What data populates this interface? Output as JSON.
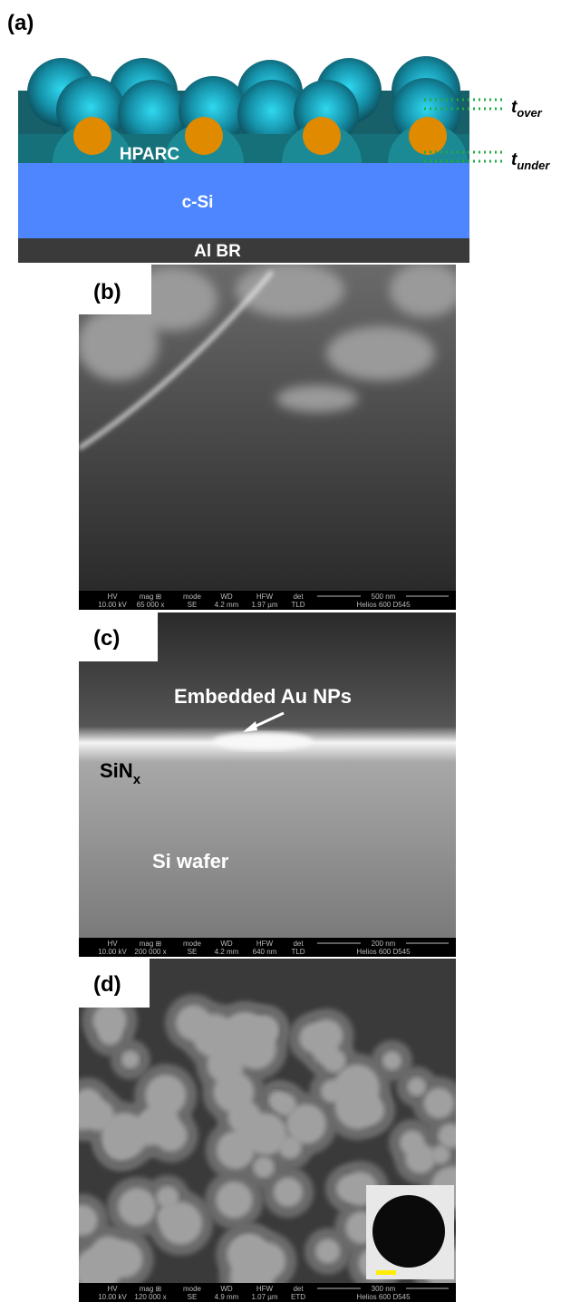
{
  "panel_a": {
    "label": "(a)",
    "layers": [
      "HPARC",
      "c-Si",
      "Al BR"
    ],
    "t_over": {
      "symbol": "t",
      "subscript": "over"
    },
    "t_under": {
      "symbol": "t",
      "subscript": "under"
    }
  },
  "panel_b": {
    "label": "(b)",
    "info_bar": {
      "headers": [
        "HV",
        "mag ⊞",
        "mode",
        "WD",
        "HFW",
        "det"
      ],
      "values": [
        "10.00 kV",
        "65 000 x",
        "SE",
        "4.2 mm",
        "1.97 µm",
        "TLD"
      ],
      "scale": "500 nm",
      "instrument": "Helios 600  D545"
    }
  },
  "panel_c": {
    "label": "(c)",
    "annotation": "Embedded Au NPs",
    "sinx": {
      "text": "SiN",
      "subscript": "x"
    },
    "substrate": "Si wafer",
    "info_bar": {
      "headers": [
        "HV",
        "mag ⊞",
        "mode",
        "WD",
        "HFW",
        "det"
      ],
      "values": [
        "10.00 kV",
        "200 000 x",
        "SE",
        "4.2 mm",
        "640 nm",
        "TLD"
      ],
      "scale": "200 nm",
      "instrument": "Helios 600  D545"
    }
  },
  "panel_d": {
    "label": "(d)",
    "info_bar": {
      "headers": [
        "HV",
        "mag ⊞",
        "mode",
        "WD",
        "HFW",
        "det"
      ],
      "values": [
        "10.00 kV",
        "120 000 x",
        "SE",
        "4.9 mm",
        "1.07 µm",
        "ETD"
      ],
      "scale": "300 nm",
      "instrument": "Helios 600  D545"
    }
  }
}
